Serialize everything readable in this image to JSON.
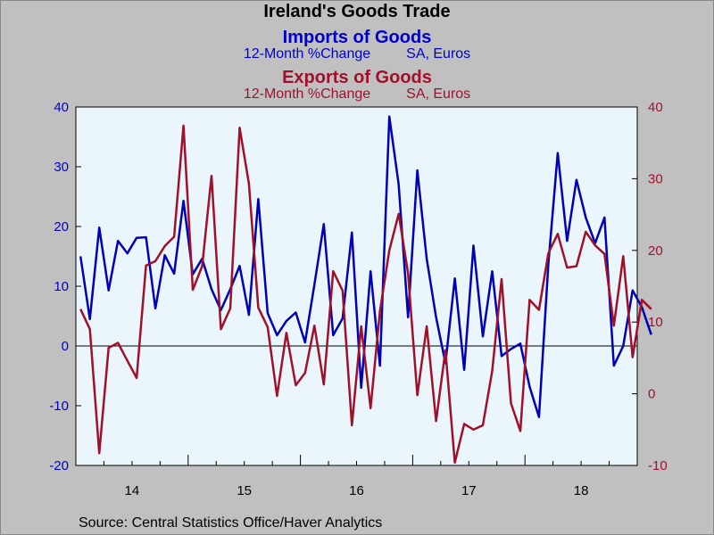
{
  "header": {
    "title": "Ireland's Goods Trade",
    "imports_title": "Imports of Goods",
    "imports_measure": "12-Month %Change",
    "imports_unit": "SA, Euros",
    "exports_title": "Exports of Goods",
    "exports_measure": "12-Month %Change",
    "exports_unit": "SA, Euros"
  },
  "source": "Source:  Central Statistics Office/Haver Analytics",
  "colors": {
    "imports": "#0000b4",
    "exports": "#a0102a",
    "plot_bg": "#eaf6fc",
    "page_bg": "#c0c0c0"
  },
  "chart_data": {
    "type": "line",
    "x_tick_labels": [
      "14",
      "15",
      "16",
      "17",
      "18"
    ],
    "x_start": "2014-01",
    "x_end": "2018-12",
    "left_axis": {
      "ylim": [
        -20,
        40
      ],
      "ticks": [
        -20,
        -10,
        0,
        10,
        20,
        30,
        40
      ]
    },
    "right_axis": {
      "ylim": [
        -10,
        40
      ],
      "ticks": [
        -10,
        0,
        10,
        20,
        30,
        40
      ]
    },
    "zero_line": 0,
    "series": [
      {
        "name": "Imports of Goods",
        "axis": "left",
        "values": [
          15.0,
          4.5,
          19.8,
          9.3,
          17.6,
          15.5,
          18.1,
          18.2,
          6.3,
          15.2,
          12.1,
          24.3,
          12.0,
          14.6,
          9.5,
          6.0,
          9.5,
          13.4,
          5.2,
          24.6,
          5.5,
          1.8,
          4.2,
          5.6,
          0.6,
          10.3,
          20.4,
          1.8,
          4.6,
          19.0,
          -7.0,
          12.5,
          -3.3,
          38.4,
          27.0,
          4.8,
          29.4,
          14.6,
          4.8,
          -2.9,
          11.3,
          -4.0,
          16.8,
          1.6,
          12.5,
          -1.7,
          -0.5,
          0.4,
          -6.8,
          -11.9,
          13.7,
          32.3,
          17.6,
          27.8,
          21.5,
          17.2,
          21.5,
          -3.3,
          0.0,
          9.3,
          6.5,
          1.9
        ],
        "start": "2014-01"
      },
      {
        "name": "Exports of Goods",
        "axis": "right",
        "values": [
          11.8,
          9.0,
          -8.3,
          6.4,
          7.1,
          4.6,
          2.2,
          17.9,
          18.5,
          20.6,
          21.9,
          37.4,
          14.5,
          17.8,
          30.4,
          9.0,
          11.9,
          37.1,
          29.3,
          12.0,
          9.3,
          -0.3,
          8.5,
          1.2,
          2.9,
          9.5,
          1.3,
          17.1,
          14.4,
          -4.4,
          9.4,
          -2.0,
          11.5,
          20.0,
          25.1,
          16.8,
          -0.2,
          9.4,
          -3.8,
          6.1,
          -9.6,
          -4.2,
          -5.0,
          -4.4,
          3.2,
          16.0,
          -1.3,
          -5.2,
          13.1,
          11.7,
          19.6,
          22.3,
          17.6,
          17.8,
          22.6,
          20.7,
          19.5,
          9.5,
          19.2,
          5.1,
          13.1,
          11.8
        ],
        "start": "2014-01"
      }
    ]
  }
}
